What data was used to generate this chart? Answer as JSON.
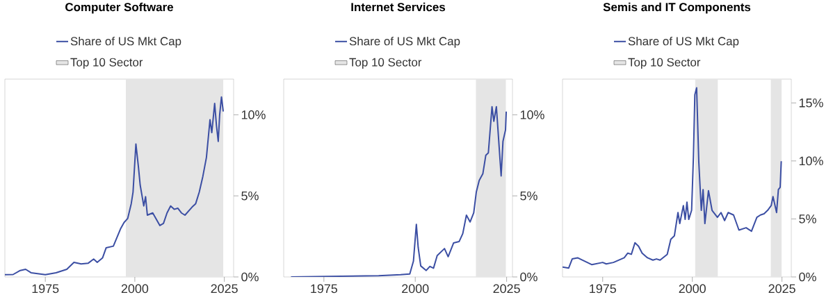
{
  "chart_data": [
    {
      "type": "line",
      "title": "Computer Software",
      "legend": "top",
      "xlim": [
        1963.7,
        2027.6
      ],
      "ylim": [
        0,
        12.2
      ],
      "xticks": [
        1975,
        2000,
        2025
      ],
      "yticks": [
        {
          "value": 0,
          "label": "0%"
        },
        {
          "value": 5,
          "label": "5%"
        },
        {
          "value": 10,
          "label": "10%"
        }
      ],
      "bands": [
        {
          "axis": "x",
          "from": 1997.5,
          "to": 2024.7,
          "label": "Top 10 Sector",
          "color": "#e5e5e5"
        }
      ],
      "series": [
        {
          "name": "Share of US Mkt Cap",
          "color": "#3b4ea3",
          "x": [
            1963.7,
            1966,
            1968,
            1969.5,
            1971,
            1975,
            1978,
            1981,
            1983,
            1985,
            1987,
            1988.5,
            1989.5,
            1991,
            1992,
            1994,
            1996,
            1997,
            1998,
            1999,
            1999.5,
            2000.3,
            2001,
            2001.5,
            2002.5,
            2003,
            2003.5,
            2005,
            2007,
            2008,
            2009,
            2010,
            2011,
            2012,
            2013,
            2014,
            2016,
            2017,
            2018,
            2019,
            2020,
            2021,
            2021.5,
            2022.3,
            2022.8,
            2023.3,
            2023.7,
            2024.2,
            2024.7
          ],
          "values": [
            0.14,
            0.15,
            0.4,
            0.47,
            0.26,
            0.14,
            0.26,
            0.47,
            0.9,
            0.8,
            0.85,
            1.1,
            0.9,
            1.18,
            1.8,
            1.9,
            2.96,
            3.36,
            3.6,
            4.52,
            5.23,
            8.2,
            6.8,
            5.66,
            4.38,
            4.95,
            3.81,
            3.95,
            3.17,
            3.3,
            3.95,
            4.38,
            4.17,
            4.24,
            3.95,
            3.81,
            4.31,
            4.52,
            5.23,
            6.2,
            7.37,
            9.7,
            8.9,
            10.7,
            9.35,
            8.36,
            10.0,
            11.1,
            10.2
          ]
        }
      ]
    },
    {
      "type": "line",
      "title": "Internet Services",
      "legend": "top",
      "xlim": [
        1964,
        2026.6
      ],
      "ylim": [
        0,
        12.2
      ],
      "xticks": [
        1975,
        2000,
        2025
      ],
      "yticks": [
        {
          "value": 0,
          "label": "0%"
        },
        {
          "value": 5,
          "label": "5%"
        },
        {
          "value": 10,
          "label": "10%"
        }
      ],
      "bands": [
        {
          "axis": "x",
          "from": 2016.6,
          "to": 2024.8,
          "label": "Top 10 Sector",
          "color": "#e5e5e5"
        }
      ],
      "series": [
        {
          "name": "Share of US Mkt Cap",
          "color": "#3b4ea3",
          "x": [
            1966,
            1990,
            1996,
            1998.5,
            1999.5,
            2000.3,
            2000.8,
            2001.5,
            2003,
            2004,
            2005,
            2006,
            2008,
            2009,
            2010.5,
            2012,
            2013,
            2014,
            2015,
            2016,
            2016.7,
            2017.5,
            2018.5,
            2019.3,
            2020,
            2021,
            2021.5,
            2022.2,
            2023.5,
            2024,
            2024.7,
            2024.9
          ],
          "values": [
            0.0,
            0.08,
            0.14,
            0.18,
            0.97,
            3.24,
            1.82,
            0.68,
            0.4,
            0.65,
            0.54,
            1.32,
            1.75,
            1.25,
            2.1,
            2.18,
            2.67,
            3.81,
            3.39,
            3.95,
            5.23,
            5.95,
            6.37,
            7.5,
            7.65,
            10.5,
            9.6,
            10.5,
            6.23,
            8.36,
            9.07,
            10.2
          ]
        }
      ]
    },
    {
      "type": "line",
      "title": "Semis and IT Components",
      "legend": "top",
      "xlim": [
        1963.8,
        2027.6
      ],
      "ylim": [
        0,
        17.05
      ],
      "xticks": [
        1975,
        2000,
        2025
      ],
      "yticks": [
        {
          "value": 0,
          "label": "0%"
        },
        {
          "value": 5,
          "label": "5%"
        },
        {
          "value": 10,
          "label": "10%"
        },
        {
          "value": 15,
          "label": "15%"
        }
      ],
      "bands": [
        {
          "axis": "x",
          "from": 2000.8,
          "to": 2007.1,
          "label": "Top 10 Sector",
          "color": "#e5e5e5"
        },
        {
          "axis": "x",
          "from": 2021.9,
          "to": 2024.9,
          "color": "#e5e5e5"
        }
      ],
      "series": [
        {
          "name": "Share of US Mkt Cap",
          "color": "#3b4ea3",
          "x": [
            1963.8,
            1965.5,
            1966.5,
            1968,
            1970,
            1972,
            1975,
            1976,
            1978,
            1981,
            1982,
            1983,
            1984,
            1985,
            1986,
            1987.5,
            1989,
            1990,
            1991,
            1993,
            1994,
            1995,
            1996,
            1996.5,
            1997.5,
            1998,
            1998.5,
            1999,
            1999.8,
            2000.3,
            2000.7,
            2001.2,
            2001.8,
            2002.5,
            2003,
            2003.5,
            2004.5,
            2005.5,
            2007,
            2008,
            2009,
            2010,
            2011.5,
            2013,
            2015,
            2016.5,
            2018,
            2019,
            2020,
            2021,
            2022,
            2022.5,
            2023.5,
            2024,
            2024.5,
            2024.8
          ],
          "values": [
            0.86,
            0.76,
            1.55,
            1.65,
            1.35,
            1.06,
            1.25,
            1.12,
            1.25,
            1.65,
            2.05,
            1.95,
            2.95,
            2.65,
            2.05,
            1.65,
            1.45,
            1.55,
            1.45,
            1.95,
            3.25,
            3.55,
            5.55,
            4.6,
            6.15,
            4.96,
            6.45,
            4.96,
            5.74,
            10.3,
            15.7,
            16.3,
            9.94,
            5.74,
            7.53,
            4.6,
            7.43,
            5.74,
            5.14,
            5.55,
            4.86,
            5.55,
            5.34,
            4.04,
            4.24,
            3.94,
            5.14,
            5.34,
            5.44,
            5.74,
            6.15,
            6.93,
            5.55,
            7.53,
            7.73,
            9.98
          ]
        }
      ]
    }
  ]
}
